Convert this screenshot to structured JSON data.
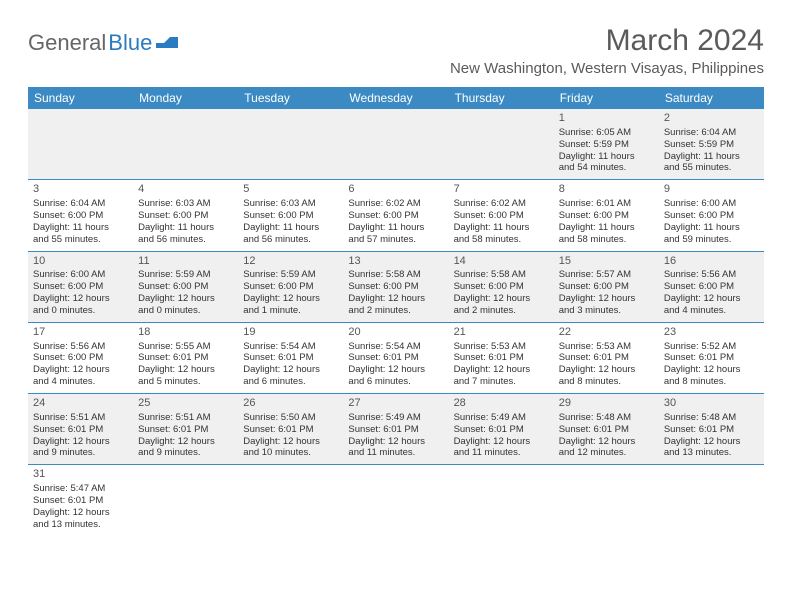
{
  "logo": {
    "text1": "General",
    "text2": "Blue"
  },
  "title": "March 2024",
  "location": "New Washington, Western Visayas, Philippines",
  "colors": {
    "header_bg": "#3b8ac4",
    "header_fg": "#ffffff",
    "row_alt": "#f0f0f0",
    "border": "#3b8ac4"
  },
  "weekdays": [
    "Sunday",
    "Monday",
    "Tuesday",
    "Wednesday",
    "Thursday",
    "Friday",
    "Saturday"
  ],
  "weeks": [
    [
      null,
      null,
      null,
      null,
      null,
      {
        "n": "1",
        "sr": "Sunrise: 6:05 AM",
        "ss": "Sunset: 5:59 PM",
        "d1": "Daylight: 11 hours",
        "d2": "and 54 minutes."
      },
      {
        "n": "2",
        "sr": "Sunrise: 6:04 AM",
        "ss": "Sunset: 5:59 PM",
        "d1": "Daylight: 11 hours",
        "d2": "and 55 minutes."
      }
    ],
    [
      {
        "n": "3",
        "sr": "Sunrise: 6:04 AM",
        "ss": "Sunset: 6:00 PM",
        "d1": "Daylight: 11 hours",
        "d2": "and 55 minutes."
      },
      {
        "n": "4",
        "sr": "Sunrise: 6:03 AM",
        "ss": "Sunset: 6:00 PM",
        "d1": "Daylight: 11 hours",
        "d2": "and 56 minutes."
      },
      {
        "n": "5",
        "sr": "Sunrise: 6:03 AM",
        "ss": "Sunset: 6:00 PM",
        "d1": "Daylight: 11 hours",
        "d2": "and 56 minutes."
      },
      {
        "n": "6",
        "sr": "Sunrise: 6:02 AM",
        "ss": "Sunset: 6:00 PM",
        "d1": "Daylight: 11 hours",
        "d2": "and 57 minutes."
      },
      {
        "n": "7",
        "sr": "Sunrise: 6:02 AM",
        "ss": "Sunset: 6:00 PM",
        "d1": "Daylight: 11 hours",
        "d2": "and 58 minutes."
      },
      {
        "n": "8",
        "sr": "Sunrise: 6:01 AM",
        "ss": "Sunset: 6:00 PM",
        "d1": "Daylight: 11 hours",
        "d2": "and 58 minutes."
      },
      {
        "n": "9",
        "sr": "Sunrise: 6:00 AM",
        "ss": "Sunset: 6:00 PM",
        "d1": "Daylight: 11 hours",
        "d2": "and 59 minutes."
      }
    ],
    [
      {
        "n": "10",
        "sr": "Sunrise: 6:00 AM",
        "ss": "Sunset: 6:00 PM",
        "d1": "Daylight: 12 hours",
        "d2": "and 0 minutes."
      },
      {
        "n": "11",
        "sr": "Sunrise: 5:59 AM",
        "ss": "Sunset: 6:00 PM",
        "d1": "Daylight: 12 hours",
        "d2": "and 0 minutes."
      },
      {
        "n": "12",
        "sr": "Sunrise: 5:59 AM",
        "ss": "Sunset: 6:00 PM",
        "d1": "Daylight: 12 hours",
        "d2": "and 1 minute."
      },
      {
        "n": "13",
        "sr": "Sunrise: 5:58 AM",
        "ss": "Sunset: 6:00 PM",
        "d1": "Daylight: 12 hours",
        "d2": "and 2 minutes."
      },
      {
        "n": "14",
        "sr": "Sunrise: 5:58 AM",
        "ss": "Sunset: 6:00 PM",
        "d1": "Daylight: 12 hours",
        "d2": "and 2 minutes."
      },
      {
        "n": "15",
        "sr": "Sunrise: 5:57 AM",
        "ss": "Sunset: 6:00 PM",
        "d1": "Daylight: 12 hours",
        "d2": "and 3 minutes."
      },
      {
        "n": "16",
        "sr": "Sunrise: 5:56 AM",
        "ss": "Sunset: 6:00 PM",
        "d1": "Daylight: 12 hours",
        "d2": "and 4 minutes."
      }
    ],
    [
      {
        "n": "17",
        "sr": "Sunrise: 5:56 AM",
        "ss": "Sunset: 6:00 PM",
        "d1": "Daylight: 12 hours",
        "d2": "and 4 minutes."
      },
      {
        "n": "18",
        "sr": "Sunrise: 5:55 AM",
        "ss": "Sunset: 6:01 PM",
        "d1": "Daylight: 12 hours",
        "d2": "and 5 minutes."
      },
      {
        "n": "19",
        "sr": "Sunrise: 5:54 AM",
        "ss": "Sunset: 6:01 PM",
        "d1": "Daylight: 12 hours",
        "d2": "and 6 minutes."
      },
      {
        "n": "20",
        "sr": "Sunrise: 5:54 AM",
        "ss": "Sunset: 6:01 PM",
        "d1": "Daylight: 12 hours",
        "d2": "and 6 minutes."
      },
      {
        "n": "21",
        "sr": "Sunrise: 5:53 AM",
        "ss": "Sunset: 6:01 PM",
        "d1": "Daylight: 12 hours",
        "d2": "and 7 minutes."
      },
      {
        "n": "22",
        "sr": "Sunrise: 5:53 AM",
        "ss": "Sunset: 6:01 PM",
        "d1": "Daylight: 12 hours",
        "d2": "and 8 minutes."
      },
      {
        "n": "23",
        "sr": "Sunrise: 5:52 AM",
        "ss": "Sunset: 6:01 PM",
        "d1": "Daylight: 12 hours",
        "d2": "and 8 minutes."
      }
    ],
    [
      {
        "n": "24",
        "sr": "Sunrise: 5:51 AM",
        "ss": "Sunset: 6:01 PM",
        "d1": "Daylight: 12 hours",
        "d2": "and 9 minutes."
      },
      {
        "n": "25",
        "sr": "Sunrise: 5:51 AM",
        "ss": "Sunset: 6:01 PM",
        "d1": "Daylight: 12 hours",
        "d2": "and 9 minutes."
      },
      {
        "n": "26",
        "sr": "Sunrise: 5:50 AM",
        "ss": "Sunset: 6:01 PM",
        "d1": "Daylight: 12 hours",
        "d2": "and 10 minutes."
      },
      {
        "n": "27",
        "sr": "Sunrise: 5:49 AM",
        "ss": "Sunset: 6:01 PM",
        "d1": "Daylight: 12 hours",
        "d2": "and 11 minutes."
      },
      {
        "n": "28",
        "sr": "Sunrise: 5:49 AM",
        "ss": "Sunset: 6:01 PM",
        "d1": "Daylight: 12 hours",
        "d2": "and 11 minutes."
      },
      {
        "n": "29",
        "sr": "Sunrise: 5:48 AM",
        "ss": "Sunset: 6:01 PM",
        "d1": "Daylight: 12 hours",
        "d2": "and 12 minutes."
      },
      {
        "n": "30",
        "sr": "Sunrise: 5:48 AM",
        "ss": "Sunset: 6:01 PM",
        "d1": "Daylight: 12 hours",
        "d2": "and 13 minutes."
      }
    ],
    [
      {
        "n": "31",
        "sr": "Sunrise: 5:47 AM",
        "ss": "Sunset: 6:01 PM",
        "d1": "Daylight: 12 hours",
        "d2": "and 13 minutes."
      },
      null,
      null,
      null,
      null,
      null,
      null
    ]
  ]
}
